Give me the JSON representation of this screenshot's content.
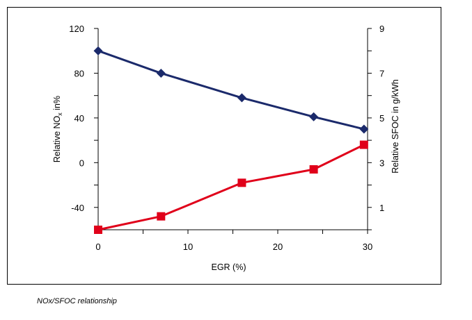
{
  "chart_data": {
    "type": "line",
    "title": "",
    "xlabel": "EGR (%)",
    "xlim": [
      0,
      30
    ],
    "xticks": [
      0,
      10,
      20,
      30
    ],
    "ylabel_left": {
      "main": "Relative NO",
      "sub": "x",
      "tail": " in%"
    },
    "ylabel_right": "Relative SFOC in g/kWh",
    "ylim_left": [
      -60,
      120
    ],
    "ylim_right": [
      0,
      9
    ],
    "yticks_left": [
      120,
      80,
      40,
      0,
      -40
    ],
    "yticks_right": [
      9,
      7,
      5,
      3,
      1
    ],
    "grid": false,
    "series": [
      {
        "axis": "left",
        "color": "#1b2a6b",
        "marker": "diamond",
        "x": [
          0,
          7,
          16,
          24,
          29.6
        ],
        "y": [
          100,
          80,
          58,
          41,
          30
        ]
      },
      {
        "axis": "right",
        "color": "#e0001a",
        "marker": "square",
        "x": [
          0,
          7,
          16,
          24,
          29.6
        ],
        "y": [
          0.0,
          0.6,
          2.1,
          2.7,
          3.8
        ]
      }
    ]
  },
  "caption": "NOx/SFOC relationship"
}
